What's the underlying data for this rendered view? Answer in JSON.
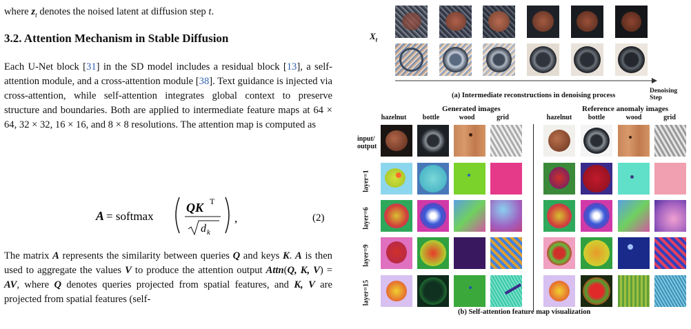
{
  "text": {
    "first_line_a": "where ",
    "first_line_z": "z",
    "first_line_t": "t",
    "first_line_b": " denotes the noised latent at diffusion step ",
    "first_line_c": "t",
    "first_line_d": ".",
    "heading": "3.2. Attention Mechanism in Stable Diffusion",
    "para1": [
      "Each U-Net block [",
      "31",
      "] in the SD model includes a residual block [",
      "13",
      "], a self-attention module, and a cross-attention module [",
      "38",
      "]. Text guidance is injected via cross-attention, while self-attention integrates global context to preserve structure and boundaries.  Both are applied to intermediate feature maps at 64 × 64, 32 × 32, 16 × 16, and 8 × 8 resolutions. The attention map is computed as"
    ],
    "equation": {
      "lhs": "A",
      "eq": " = softmax",
      "num": "QK",
      "sup": "T",
      "den": "d",
      "den_sub": "k",
      "tail": ",",
      "number": "(2)"
    },
    "para2": [
      "The matrix ",
      "A",
      " represents the similarity between queries ",
      "Q",
      " and keys ",
      "K",
      ".  ",
      "A",
      " is then used to aggregate the values ",
      "V",
      " to produce the attention output ",
      "Attn",
      "(",
      "Q, K, V",
      ") = ",
      "AV",
      ", where ",
      "Q",
      " denotes queries projected from spatial features, and ",
      "K, V",
      " are projected from spatial features (self-"
    ]
  },
  "figure": {
    "xt_label": "X",
    "xt_sub": "t",
    "caption_a": "(a) Intermediate reconstructions in denoising process",
    "denoising_step": "Denoising Step",
    "generated_title": "Generated images",
    "reference_title": "Reference anomaly images",
    "columns": [
      "hazelnut",
      "bottle",
      "wood",
      "grid"
    ],
    "rows": [
      "input/\noutput",
      "layer=1",
      "layer=6",
      "layer=9",
      "layer=15"
    ],
    "caption_b": "(b) Self-attention feature map visualization"
  }
}
